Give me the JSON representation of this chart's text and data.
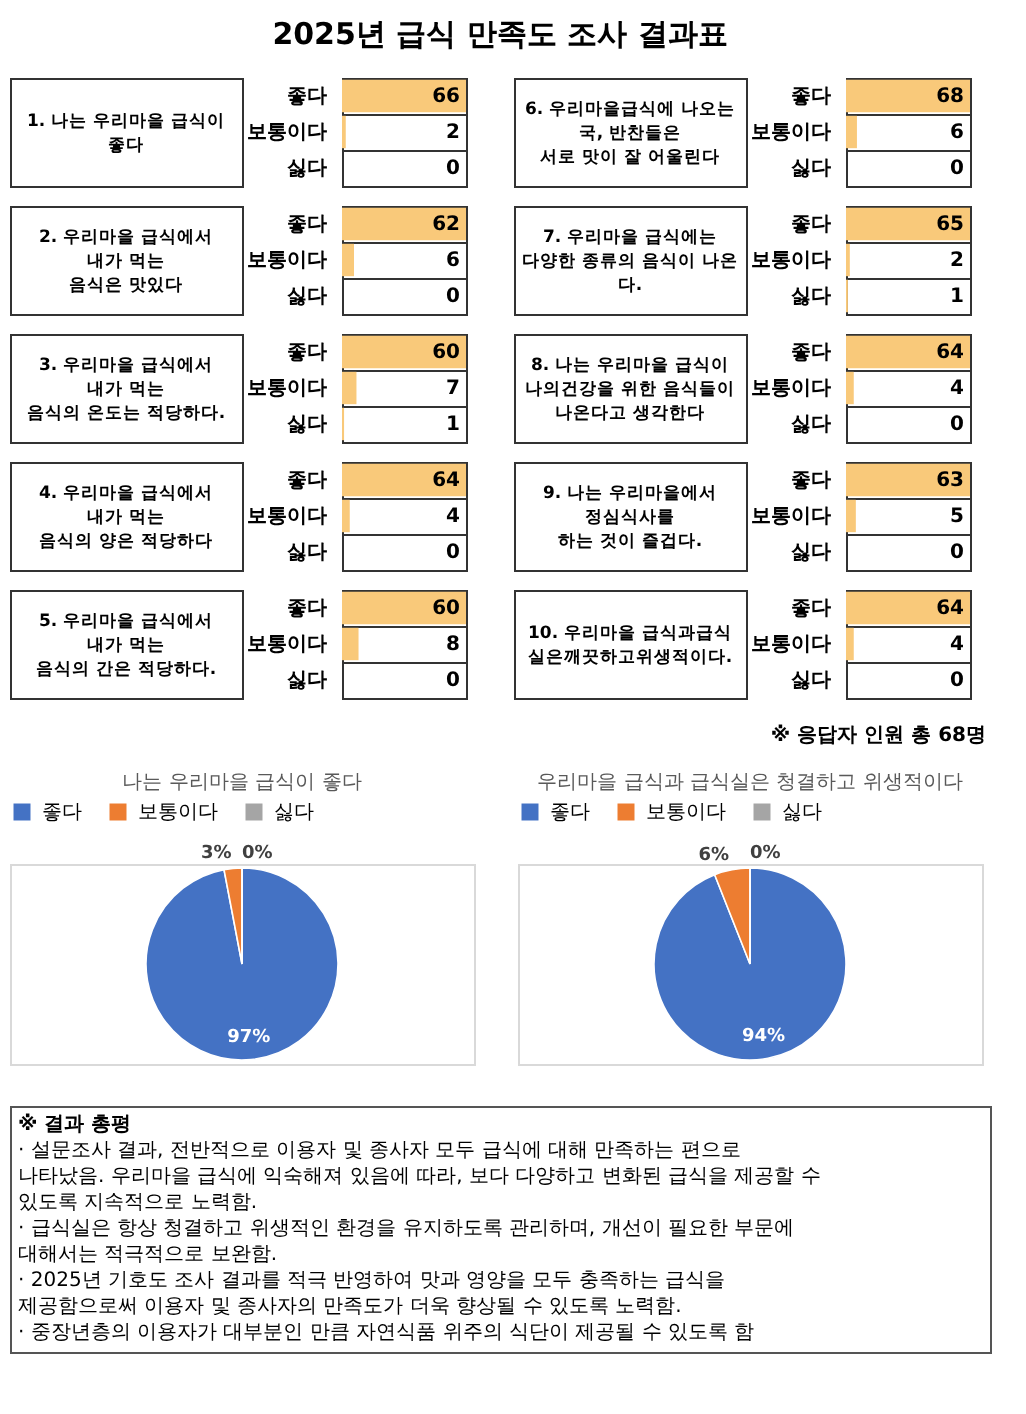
{
  "chart_data": [
    {
      "type": "other",
      "title": "2025년 급식 만족도 조사 결과표"
    },
    {
      "type": "bar",
      "orientation": "horizontal",
      "title": "1. 나는 우리마을 급식이\n좋다",
      "categories": [
        "좋다",
        "보통이다",
        "싫다"
      ],
      "values": [
        66,
        2,
        0
      ],
      "color": "#f9c97a",
      "data_labels": true
    },
    {
      "type": "bar",
      "orientation": "horizontal",
      "title": "2. 우리마을 급식에서\n내가 먹는\n음식은 맛있다",
      "categories": [
        "좋다",
        "보통이다",
        "싫다"
      ],
      "values": [
        62,
        6,
        0
      ],
      "color": "#f9c97a",
      "data_labels": true
    },
    {
      "type": "bar",
      "orientation": "horizontal",
      "title": "3. 우리마을 급식에서\n내가 먹는\n음식의 온도는 적당하다.",
      "categories": [
        "좋다",
        "보통이다",
        "싫다"
      ],
      "values": [
        60,
        7,
        1
      ],
      "color": "#f9c97a",
      "data_labels": true
    },
    {
      "type": "bar",
      "orientation": "horizontal",
      "title": "4. 우리마을 급식에서\n내가 먹는\n음식의 양은 적당하다",
      "categories": [
        "좋다",
        "보통이다",
        "싫다"
      ],
      "values": [
        64,
        4,
        0
      ],
      "color": "#f9c97a",
      "data_labels": true
    },
    {
      "type": "bar",
      "orientation": "horizontal",
      "title": "5. 우리마을 급식에서\n내가 먹는\n음식의 간은 적당하다.",
      "categories": [
        "좋다",
        "보통이다",
        "싫다"
      ],
      "values": [
        60,
        8,
        0
      ],
      "color": "#f9c97a",
      "data_labels": true
    },
    {
      "type": "bar",
      "orientation": "horizontal",
      "title": "6. 우리마을급식에 나오는\n국, 반찬들은\n서로 맛이 잘 어울린다",
      "categories": [
        "좋다",
        "보통이다",
        "싫다"
      ],
      "values": [
        68,
        6,
        0
      ],
      "color": "#f9c97a",
      "data_labels": true
    },
    {
      "type": "bar",
      "orientation": "horizontal",
      "title": "7. 우리마을 급식에는\n다양한 종류의 음식이 나온\n다.",
      "categories": [
        "좋다",
        "보통이다",
        "싫다"
      ],
      "values": [
        65,
        2,
        1
      ],
      "color": "#f9c97a",
      "data_labels": true
    },
    {
      "type": "bar",
      "orientation": "horizontal",
      "title": "8. 나는  우리마을 급식이\n나의건강을 위한 음식들이\n나온다고 생각한다",
      "categories": [
        "좋다",
        "보통이다",
        "싫다"
      ],
      "values": [
        64,
        4,
        0
      ],
      "color": "#f9c97a",
      "data_labels": true
    },
    {
      "type": "bar",
      "orientation": "horizontal",
      "title": "9. 나는 우리마을에서\n정심식사를\n하는 것이 즐겁다.",
      "categories": [
        "좋다",
        "보통이다",
        "싫다"
      ],
      "values": [
        63,
        5,
        0
      ],
      "color": "#f9c97a",
      "data_labels": true
    },
    {
      "type": "bar",
      "orientation": "horizontal",
      "title": "10. 우리마을 급식과급식\n실은깨끗하고위생적이다.",
      "categories": [
        "좋다",
        "보통이다",
        "싫다"
      ],
      "values": [
        64,
        4,
        0
      ],
      "color": "#f9c97a",
      "data_labels": true
    },
    {
      "type": "other",
      "annotations": [
        "※ 응답자 인원 총 68명"
      ]
    },
    {
      "type": "pie",
      "title": "나는 우리마을 급식이 좋다",
      "categories": [
        "좋다",
        "보통이다",
        "싫다"
      ],
      "values": [
        97,
        3,
        0
      ],
      "colors": [
        "#4472c4",
        "#ed7d31",
        "#a5a5a5"
      ],
      "value_labels": [
        "97%",
        "3%",
        "0%"
      ],
      "legend": "top"
    },
    {
      "type": "pie",
      "title": "우리마을 급식과 급식실은 청결하고 위생적이다",
      "categories": [
        "좋다",
        "보통이다",
        "싫다"
      ],
      "values": [
        94,
        6,
        0
      ],
      "colors": [
        "#4472c4",
        "#ed7d31",
        "#a5a5a5"
      ],
      "value_labels": [
        "94%",
        "6%",
        "0%"
      ],
      "legend": "top"
    },
    {
      "type": "other",
      "title": "※ 결과 총평",
      "annotations": [
        "· 설문조사 결과, 전반적으로 이용자 및 종사자 모두 급식에 대해 만족하는 편으로 나타났음. 우리마을 급식에 익숙해져 있음에 따라, 보다 다양하고 변화된 급식을 제공할 수 있도록 지속적으로 노력함.",
        "· 급식실은 항상 청결하고 위생적인 환경을 유지하도록 관리하며, 개선이 필요한 부문에 대해서는 적극적으로 보완함.",
        "· 2025년 기호도 조사 결과를 적극 반영하여 맛과 영양을 모두 충족하는 급식을 제공함으로써 이용자 및 종사자의 만족도가 더욱 향상될 수 있도록 노력함.",
        "· 중장년층의 이용자가 대부분인 만큼 자연식품 위주의 식단이 제공될 수 있도록 함"
      ]
    }
  ]
}
